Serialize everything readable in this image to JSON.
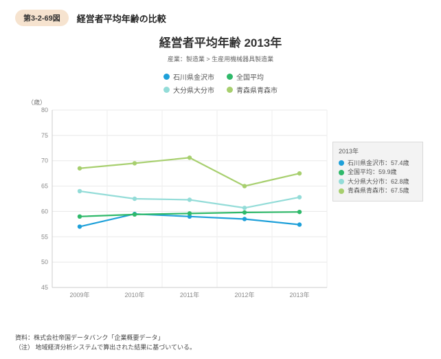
{
  "figure_badge": "第3-2-69図",
  "figure_title": "経営者平均年齢の比較",
  "chart": {
    "type": "line",
    "title": "経営者平均年齢 2013年",
    "subtitle": "産業：製造業 > 生産用機械器具製造業",
    "y_unit": "（歳）",
    "background_color": "#ffffff",
    "grid_color": "#e8e8e8",
    "axis_color": "#cccccc",
    "label_color": "#888888",
    "label_fontsize": 9,
    "title_fontsize": 17,
    "xlim": [
      2009,
      2013
    ],
    "ylim": [
      45,
      80
    ],
    "ytick_step": 5,
    "yticks": [
      45,
      50,
      55,
      60,
      65,
      70,
      75,
      80
    ],
    "x_categories": [
      "2009年",
      "2010年",
      "2011年",
      "2012年",
      "2013年"
    ],
    "series": [
      {
        "name": "石川県金沢市",
        "color": "#1ea0d9",
        "values": [
          57.0,
          59.5,
          59.0,
          58.5,
          57.4
        ]
      },
      {
        "name": "全国平均",
        "color": "#2fb96a",
        "values": [
          59.0,
          59.4,
          59.6,
          59.8,
          59.9
        ]
      },
      {
        "name": "大分県大分市",
        "color": "#93dcd8",
        "values": [
          64.0,
          62.5,
          62.3,
          60.7,
          62.8
        ]
      },
      {
        "name": "青森県青森市",
        "color": "#a7cf6e",
        "values": [
          68.5,
          69.5,
          70.6,
          65.0,
          67.5
        ]
      }
    ],
    "line_width": 2.2,
    "marker_radius": 3.2
  },
  "callout": {
    "year": "2013年",
    "rows": [
      {
        "label": "石川県金沢市：57.4歳",
        "color": "#1ea0d9"
      },
      {
        "label": "全国平均：59.9歳",
        "color": "#2fb96a"
      },
      {
        "label": "大分県大分市：62.8歳",
        "color": "#93dcd8"
      },
      {
        "label": "青森県青森市：67.5歳",
        "color": "#a7cf6e"
      }
    ]
  },
  "footer": {
    "source_label": "資料：",
    "source_text": "株式会社帝国データバンク「企業概要データ」",
    "note_label": "（注）",
    "note_text": "地域経済分析システムで算出された結果に基づいている。"
  }
}
